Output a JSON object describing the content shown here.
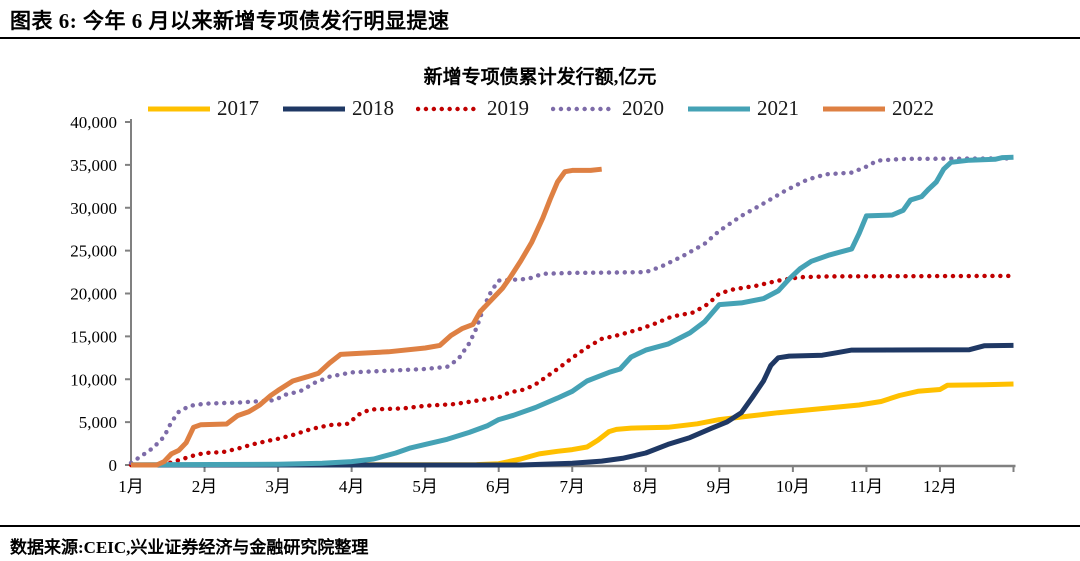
{
  "header": {
    "title": "图表 6: 今年 6 月以来新增专项债发行明显提速"
  },
  "footer": {
    "source": "数据来源:CEIC,兴业证券经济与金融研究院整理"
  },
  "chart_data": {
    "type": "line",
    "title": "新增专项债累计发行额,亿元",
    "units": "亿元",
    "grid": false,
    "legend_position": "top",
    "axis_color": "#808080",
    "text_color": "#000000",
    "x_axis": {
      "labels": [
        "1月",
        "2月",
        "3月",
        "4月",
        "5月",
        "6月",
        "7月",
        "8月",
        "9月",
        "10月",
        "11月",
        "12月"
      ],
      "range_months": [
        1,
        13
      ]
    },
    "y_axis": {
      "min": 0,
      "max": 40000,
      "step": 5000,
      "tick_values": [
        0,
        5000,
        10000,
        15000,
        20000,
        25000,
        30000,
        35000,
        40000
      ],
      "tick_labels": [
        "0",
        "5,000",
        "10,000",
        "15,000",
        "20,000",
        "25,000",
        "30,000",
        "35,000",
        "40,000"
      ]
    },
    "series": [
      {
        "name": "2017",
        "color": "#FFC000",
        "line_style": "solid",
        "points": [
          [
            1,
            0
          ],
          [
            5.7,
            50
          ],
          [
            6.0,
            150
          ],
          [
            6.3,
            700
          ],
          [
            6.55,
            1300
          ],
          [
            6.8,
            1600
          ],
          [
            7.0,
            1800
          ],
          [
            7.2,
            2100
          ],
          [
            7.35,
            2900
          ],
          [
            7.5,
            3900
          ],
          [
            7.6,
            4150
          ],
          [
            7.8,
            4300
          ],
          [
            8.3,
            4400
          ],
          [
            8.7,
            4800
          ],
          [
            9.0,
            5300
          ],
          [
            9.4,
            5700
          ],
          [
            9.8,
            6100
          ],
          [
            10.3,
            6500
          ],
          [
            10.9,
            7000
          ],
          [
            11.2,
            7400
          ],
          [
            11.45,
            8100
          ],
          [
            11.7,
            8600
          ],
          [
            12.0,
            8800
          ],
          [
            12.1,
            9300
          ],
          [
            12.6,
            9350
          ],
          [
            13,
            9450
          ]
        ]
      },
      {
        "name": "2018",
        "color": "#1F3864",
        "line_style": "solid",
        "points": [
          [
            1,
            0
          ],
          [
            6.3,
            0
          ],
          [
            6.6,
            80
          ],
          [
            7.0,
            200
          ],
          [
            7.4,
            450
          ],
          [
            7.7,
            800
          ],
          [
            8.0,
            1400
          ],
          [
            8.3,
            2400
          ],
          [
            8.6,
            3200
          ],
          [
            8.9,
            4300
          ],
          [
            9.1,
            5000
          ],
          [
            9.3,
            6100
          ],
          [
            9.45,
            7900
          ],
          [
            9.6,
            9800
          ],
          [
            9.7,
            11600
          ],
          [
            9.8,
            12500
          ],
          [
            9.95,
            12700
          ],
          [
            10.4,
            12800
          ],
          [
            10.6,
            13100
          ],
          [
            10.8,
            13400
          ],
          [
            12.4,
            13450
          ],
          [
            12.6,
            13900
          ],
          [
            13,
            13950
          ]
        ]
      },
      {
        "name": "2019",
        "color": "#C00000",
        "line_style": "dotted",
        "points": [
          [
            1,
            0
          ],
          [
            1.4,
            0
          ],
          [
            1.55,
            300
          ],
          [
            1.7,
            700
          ],
          [
            1.85,
            1100
          ],
          [
            2.0,
            1400
          ],
          [
            2.25,
            1500
          ],
          [
            2.45,
            1900
          ],
          [
            2.65,
            2400
          ],
          [
            2.85,
            2800
          ],
          [
            3.0,
            3050
          ],
          [
            3.2,
            3500
          ],
          [
            3.45,
            4200
          ],
          [
            3.7,
            4650
          ],
          [
            3.95,
            4800
          ],
          [
            4.1,
            5900
          ],
          [
            4.25,
            6470
          ],
          [
            4.7,
            6600
          ],
          [
            5.0,
            6900
          ],
          [
            5.4,
            7100
          ],
          [
            5.7,
            7500
          ],
          [
            6.0,
            7900
          ],
          [
            6.15,
            8470
          ],
          [
            6.35,
            8800
          ],
          [
            6.5,
            9400
          ],
          [
            6.65,
            10300
          ],
          [
            6.8,
            11200
          ],
          [
            7.0,
            12500
          ],
          [
            7.2,
            13700
          ],
          [
            7.4,
            14700
          ],
          [
            7.65,
            15200
          ],
          [
            7.9,
            15800
          ],
          [
            8.1,
            16400
          ],
          [
            8.35,
            17300
          ],
          [
            8.65,
            17800
          ],
          [
            8.85,
            18800
          ],
          [
            9.0,
            20000
          ],
          [
            9.2,
            20500
          ],
          [
            9.5,
            20900
          ],
          [
            9.8,
            21500
          ],
          [
            10.1,
            21900
          ],
          [
            10.5,
            22000
          ],
          [
            13,
            22050
          ]
        ]
      },
      {
        "name": "2020",
        "color": "#7D6BA8",
        "line_style": "dotted",
        "points": [
          [
            1,
            250
          ],
          [
            1.15,
            1100
          ],
          [
            1.3,
            2000
          ],
          [
            1.45,
            3300
          ],
          [
            1.55,
            5000
          ],
          [
            1.65,
            6200
          ],
          [
            1.8,
            6900
          ],
          [
            2.0,
            7150
          ],
          [
            2.5,
            7300
          ],
          [
            2.95,
            7550
          ],
          [
            3.1,
            8200
          ],
          [
            3.3,
            8600
          ],
          [
            3.5,
            9600
          ],
          [
            3.7,
            10300
          ],
          [
            4.0,
            10800
          ],
          [
            4.5,
            11000
          ],
          [
            5.0,
            11200
          ],
          [
            5.3,
            11450
          ],
          [
            5.45,
            12350
          ],
          [
            5.6,
            14200
          ],
          [
            5.7,
            16000
          ],
          [
            5.8,
            18500
          ],
          [
            5.9,
            20300
          ],
          [
            6.0,
            21500
          ],
          [
            6.4,
            21700
          ],
          [
            6.6,
            22300
          ],
          [
            7.0,
            22400
          ],
          [
            7.6,
            22450
          ],
          [
            8.0,
            22500
          ],
          [
            8.2,
            23100
          ],
          [
            8.5,
            24350
          ],
          [
            8.8,
            25800
          ],
          [
            9.0,
            27300
          ],
          [
            9.3,
            29050
          ],
          [
            9.6,
            30500
          ],
          [
            9.9,
            32000
          ],
          [
            10.2,
            33300
          ],
          [
            10.45,
            33900
          ],
          [
            10.8,
            34100
          ],
          [
            11.0,
            34800
          ],
          [
            11.15,
            35500
          ],
          [
            11.5,
            35700
          ],
          [
            13,
            35750
          ]
        ]
      },
      {
        "name": "2021",
        "color": "#45A2B5",
        "line_style": "solid",
        "points": [
          [
            1,
            30
          ],
          [
            3.0,
            80
          ],
          [
            3.6,
            200
          ],
          [
            4.0,
            400
          ],
          [
            4.3,
            700
          ],
          [
            4.6,
            1400
          ],
          [
            4.8,
            2000
          ],
          [
            5.0,
            2400
          ],
          [
            5.3,
            3000
          ],
          [
            5.6,
            3800
          ],
          [
            5.85,
            4600
          ],
          [
            6.0,
            5300
          ],
          [
            6.2,
            5800
          ],
          [
            6.5,
            6700
          ],
          [
            6.8,
            7800
          ],
          [
            7.0,
            8600
          ],
          [
            7.2,
            9800
          ],
          [
            7.5,
            10800
          ],
          [
            7.65,
            11200
          ],
          [
            7.8,
            12600
          ],
          [
            8.0,
            13400
          ],
          [
            8.3,
            14100
          ],
          [
            8.6,
            15400
          ],
          [
            8.8,
            16700
          ],
          [
            9.0,
            18700
          ],
          [
            9.3,
            18900
          ],
          [
            9.6,
            19400
          ],
          [
            9.8,
            20300
          ],
          [
            9.95,
            21700
          ],
          [
            10.1,
            22900
          ],
          [
            10.25,
            23750
          ],
          [
            10.5,
            24500
          ],
          [
            10.8,
            25200
          ],
          [
            10.9,
            27000
          ],
          [
            11.0,
            29050
          ],
          [
            11.35,
            29150
          ],
          [
            11.5,
            29700
          ],
          [
            11.6,
            30900
          ],
          [
            11.75,
            31300
          ],
          [
            11.85,
            32200
          ],
          [
            11.95,
            33000
          ],
          [
            12.05,
            34500
          ],
          [
            12.15,
            35300
          ],
          [
            12.4,
            35550
          ],
          [
            12.75,
            35650
          ],
          [
            12.85,
            35850
          ],
          [
            13,
            35880
          ]
        ]
      },
      {
        "name": "2022",
        "color": "#DE8043",
        "line_style": "solid",
        "points": [
          [
            1,
            0
          ],
          [
            1.35,
            0
          ],
          [
            1.45,
            400
          ],
          [
            1.55,
            1300
          ],
          [
            1.65,
            1700
          ],
          [
            1.75,
            2600
          ],
          [
            1.85,
            4400
          ],
          [
            1.95,
            4700
          ],
          [
            2.3,
            4780
          ],
          [
            2.45,
            5760
          ],
          [
            2.6,
            6200
          ],
          [
            2.75,
            7000
          ],
          [
            2.9,
            8100
          ],
          [
            3.0,
            8700
          ],
          [
            3.2,
            9800
          ],
          [
            3.4,
            10300
          ],
          [
            3.55,
            10700
          ],
          [
            3.7,
            11900
          ],
          [
            3.85,
            12900
          ],
          [
            4.0,
            12980
          ],
          [
            4.5,
            13200
          ],
          [
            5.0,
            13650
          ],
          [
            5.2,
            13950
          ],
          [
            5.35,
            15100
          ],
          [
            5.5,
            15900
          ],
          [
            5.65,
            16400
          ],
          [
            5.75,
            17900
          ],
          [
            5.85,
            18800
          ],
          [
            5.95,
            19700
          ],
          [
            6.05,
            20600
          ],
          [
            6.15,
            21800
          ],
          [
            6.3,
            23800
          ],
          [
            6.45,
            26000
          ],
          [
            6.6,
            28800
          ],
          [
            6.7,
            31000
          ],
          [
            6.8,
            33000
          ],
          [
            6.9,
            34200
          ],
          [
            7.0,
            34350
          ],
          [
            7.25,
            34350
          ],
          [
            7.4,
            34500
          ]
        ]
      }
    ]
  }
}
